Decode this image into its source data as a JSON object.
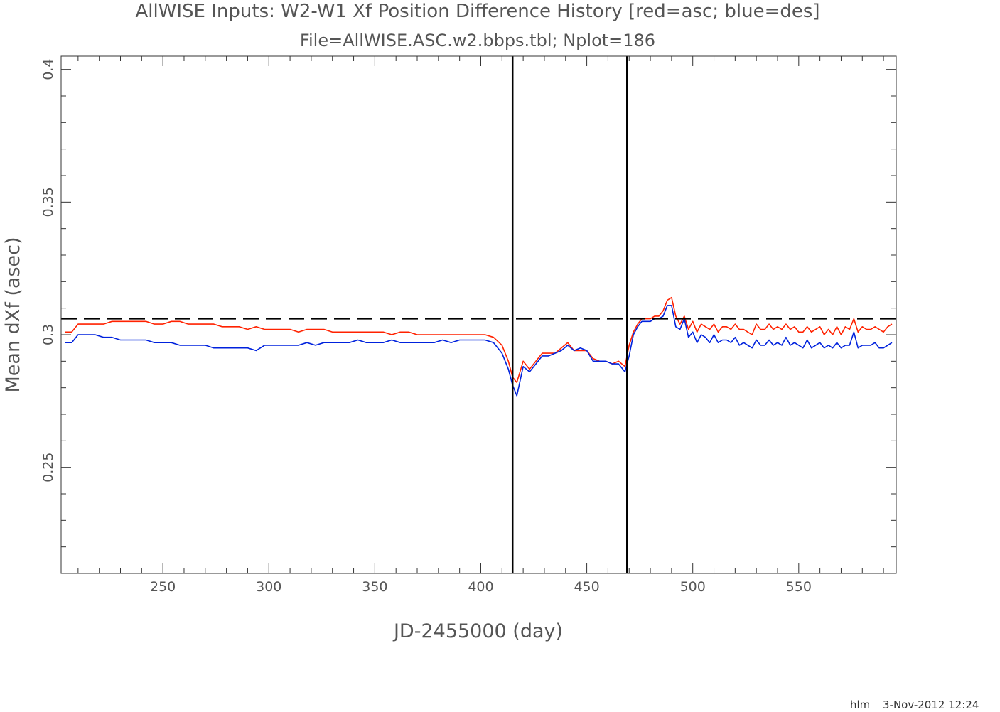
{
  "chart_data": {
    "type": "line",
    "title": "AllWISE Inputs: W2-W1 Xf Position Difference History [red=asc; blue=des]",
    "subtitle": "File=AllWISE.ASC.w2.bbps.tbl; Nplot=186",
    "xlabel": "JD-2455000 (day)",
    "ylabel": "Mean dXf (asec)",
    "xlim": [
      202,
      596
    ],
    "ylim": [
      0.21,
      0.405
    ],
    "xticks": [
      250,
      300,
      350,
      400,
      450,
      500,
      550
    ],
    "yticks": [
      0.25,
      0.3,
      0.35,
      0.4
    ],
    "xtick_labels": [
      "250",
      "300",
      "350",
      "400",
      "450",
      "500",
      "550"
    ],
    "ytick_labels": [
      "0.25",
      "0.3",
      "0.35",
      "0.4"
    ],
    "reference_line": {
      "y": 0.306,
      "style": "dashed",
      "color": "#000000"
    },
    "vertical_lines": [
      {
        "x": 415,
        "color": "#000000"
      },
      {
        "x": 469,
        "color": "#000000"
      }
    ],
    "series": [
      {
        "color": "#ff2200",
        "x": [
          204,
          207,
          210,
          214,
          218,
          222,
          226,
          230,
          234,
          238,
          242,
          246,
          250,
          254,
          258,
          262,
          266,
          270,
          274,
          278,
          282,
          286,
          290,
          294,
          298,
          302,
          306,
          310,
          314,
          318,
          322,
          326,
          330,
          334,
          338,
          342,
          346,
          350,
          354,
          358,
          362,
          366,
          370,
          374,
          378,
          382,
          386,
          390,
          394,
          398,
          402,
          406,
          410,
          413,
          415,
          417,
          420,
          423,
          426,
          429,
          432,
          435,
          438,
          441,
          444,
          447,
          450,
          453,
          456,
          459,
          462,
          465,
          468,
          470,
          472,
          474,
          476,
          478,
          480,
          482,
          484,
          486,
          488,
          490,
          492,
          494,
          496,
          498,
          500,
          502,
          504,
          506,
          508,
          510,
          512,
          514,
          516,
          518,
          520,
          522,
          524,
          526,
          528,
          530,
          532,
          534,
          536,
          538,
          540,
          542,
          544,
          546,
          548,
          550,
          552,
          554,
          556,
          558,
          560,
          562,
          564,
          566,
          568,
          570,
          572,
          574,
          576,
          578,
          580,
          582,
          584,
          586,
          588,
          590,
          592,
          594
        ],
        "y": [
          0.301,
          0.301,
          0.304,
          0.304,
          0.304,
          0.304,
          0.305,
          0.305,
          0.305,
          0.305,
          0.305,
          0.304,
          0.304,
          0.305,
          0.305,
          0.304,
          0.304,
          0.304,
          0.304,
          0.303,
          0.303,
          0.303,
          0.302,
          0.303,
          0.302,
          0.302,
          0.302,
          0.302,
          0.301,
          0.302,
          0.302,
          0.302,
          0.301,
          0.301,
          0.301,
          0.301,
          0.301,
          0.301,
          0.301,
          0.3,
          0.301,
          0.301,
          0.3,
          0.3,
          0.3,
          0.3,
          0.3,
          0.3,
          0.3,
          0.3,
          0.3,
          0.299,
          0.296,
          0.29,
          0.284,
          0.282,
          0.29,
          0.287,
          0.29,
          0.293,
          0.293,
          0.293,
          0.295,
          0.297,
          0.294,
          0.294,
          0.294,
          0.291,
          0.29,
          0.29,
          0.289,
          0.29,
          0.288,
          0.296,
          0.301,
          0.304,
          0.306,
          0.306,
          0.306,
          0.307,
          0.307,
          0.309,
          0.313,
          0.314,
          0.307,
          0.304,
          0.307,
          0.302,
          0.305,
          0.301,
          0.304,
          0.303,
          0.302,
          0.304,
          0.301,
          0.303,
          0.303,
          0.302,
          0.304,
          0.302,
          0.302,
          0.301,
          0.3,
          0.304,
          0.302,
          0.302,
          0.304,
          0.302,
          0.303,
          0.302,
          0.304,
          0.302,
          0.303,
          0.301,
          0.301,
          0.303,
          0.301,
          0.302,
          0.303,
          0.3,
          0.302,
          0.3,
          0.303,
          0.3,
          0.303,
          0.302,
          0.306,
          0.301,
          0.303,
          0.302,
          0.302,
          0.303,
          0.302,
          0.301,
          0.303,
          0.304
        ]
      },
      {
        "color": "#0022dd",
        "x": [
          204,
          207,
          210,
          214,
          218,
          222,
          226,
          230,
          234,
          238,
          242,
          246,
          250,
          254,
          258,
          262,
          266,
          270,
          274,
          278,
          282,
          286,
          290,
          294,
          298,
          302,
          306,
          310,
          314,
          318,
          322,
          326,
          330,
          334,
          338,
          342,
          346,
          350,
          354,
          358,
          362,
          366,
          370,
          374,
          378,
          382,
          386,
          390,
          394,
          398,
          402,
          406,
          410,
          413,
          415,
          417,
          420,
          423,
          426,
          429,
          432,
          435,
          438,
          441,
          444,
          447,
          450,
          453,
          456,
          459,
          462,
          465,
          468,
          470,
          472,
          474,
          476,
          478,
          480,
          482,
          484,
          486,
          488,
          490,
          492,
          494,
          496,
          498,
          500,
          502,
          504,
          506,
          508,
          510,
          512,
          514,
          516,
          518,
          520,
          522,
          524,
          526,
          528,
          530,
          532,
          534,
          536,
          538,
          540,
          542,
          544,
          546,
          548,
          550,
          552,
          554,
          556,
          558,
          560,
          562,
          564,
          566,
          568,
          570,
          572,
          574,
          576,
          578,
          580,
          582,
          584,
          586,
          588,
          590,
          592,
          594
        ],
        "y": [
          0.297,
          0.297,
          0.3,
          0.3,
          0.3,
          0.299,
          0.299,
          0.298,
          0.298,
          0.298,
          0.298,
          0.297,
          0.297,
          0.297,
          0.296,
          0.296,
          0.296,
          0.296,
          0.295,
          0.295,
          0.295,
          0.295,
          0.295,
          0.294,
          0.296,
          0.296,
          0.296,
          0.296,
          0.296,
          0.297,
          0.296,
          0.297,
          0.297,
          0.297,
          0.297,
          0.298,
          0.297,
          0.297,
          0.297,
          0.298,
          0.297,
          0.297,
          0.297,
          0.297,
          0.297,
          0.298,
          0.297,
          0.298,
          0.298,
          0.298,
          0.298,
          0.297,
          0.293,
          0.287,
          0.281,
          0.277,
          0.288,
          0.286,
          0.289,
          0.292,
          0.292,
          0.293,
          0.294,
          0.296,
          0.294,
          0.295,
          0.294,
          0.29,
          0.29,
          0.29,
          0.289,
          0.289,
          0.286,
          0.292,
          0.3,
          0.303,
          0.305,
          0.305,
          0.305,
          0.306,
          0.306,
          0.307,
          0.311,
          0.311,
          0.303,
          0.302,
          0.306,
          0.299,
          0.301,
          0.297,
          0.3,
          0.299,
          0.297,
          0.3,
          0.297,
          0.298,
          0.298,
          0.297,
          0.299,
          0.296,
          0.297,
          0.296,
          0.295,
          0.298,
          0.296,
          0.296,
          0.298,
          0.296,
          0.297,
          0.296,
          0.299,
          0.296,
          0.297,
          0.296,
          0.295,
          0.298,
          0.295,
          0.296,
          0.297,
          0.295,
          0.296,
          0.295,
          0.297,
          0.295,
          0.296,
          0.296,
          0.301,
          0.295,
          0.296,
          0.296,
          0.296,
          0.297,
          0.295,
          0.295,
          0.296,
          0.297
        ]
      }
    ]
  },
  "footer": {
    "user": "hlm",
    "timestamp": "3-Nov-2012 12:24"
  }
}
